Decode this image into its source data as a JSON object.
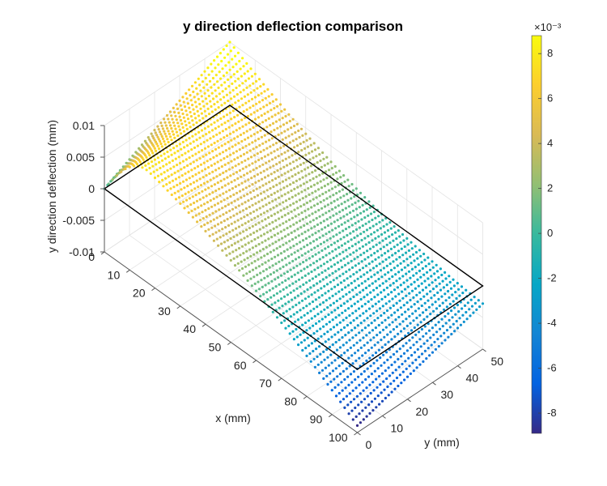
{
  "chart_data": {
    "type": "surface",
    "title": "y direction deflection comparison",
    "xlabel": "x (mm)",
    "ylabel": "y (mm)",
    "zlabel": "y direction deflection (mm)",
    "x_range": [
      0,
      100
    ],
    "y_range": [
      0,
      50
    ],
    "z_range": [
      -0.01,
      0.01
    ],
    "x_ticks": [
      "0",
      "10",
      "20",
      "30",
      "40",
      "50",
      "60",
      "70",
      "80",
      "90",
      "100"
    ],
    "y_ticks": [
      "0",
      "10",
      "20",
      "30",
      "40",
      "50"
    ],
    "z_ticks": [
      "-0.01",
      "-0.005",
      "0",
      "0.005",
      "0.01"
    ],
    "grid": true,
    "colormap": "parula",
    "colorbar": {
      "exponent_label": "×10⁻³",
      "range": [
        -8.9,
        8.8
      ],
      "ticks": [
        "8",
        "6",
        "4",
        "2",
        "0",
        "-2",
        "-4",
        "-6",
        "-8"
      ]
    },
    "surface_corners_mm": [
      {
        "x": 0,
        "y": 0,
        "z": 0.0
      },
      {
        "x": 0,
        "y": 50,
        "z": 0.01
      },
      {
        "x": 100,
        "y": 0,
        "z": -0.0089
      },
      {
        "x": 100,
        "y": 50,
        "z": -0.0028
      }
    ],
    "max_deflection_mm": 0.0088,
    "min_deflection_mm": -0.0089
  }
}
